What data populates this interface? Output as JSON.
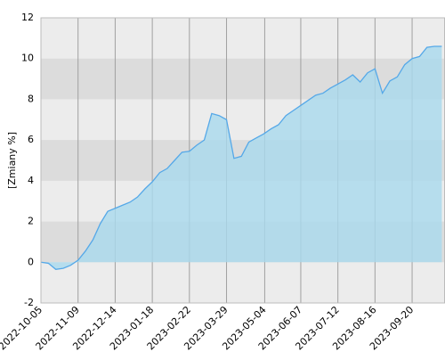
{
  "chart_data": {
    "type": "area",
    "y_label": "[Zmiany %]",
    "x": [
      "2022-10-05",
      "2022-10-12",
      "2022-10-19",
      "2022-10-26",
      "2022-11-02",
      "2022-11-09",
      "2022-11-16",
      "2022-11-23",
      "2022-11-30",
      "2022-12-07",
      "2022-12-14",
      "2022-12-21",
      "2022-12-28",
      "2023-01-04",
      "2023-01-11",
      "2023-01-18",
      "2023-01-25",
      "2023-02-01",
      "2023-02-08",
      "2023-02-15",
      "2023-02-22",
      "2023-03-01",
      "2023-03-08",
      "2023-03-15",
      "2023-03-22",
      "2023-03-29",
      "2023-04-05",
      "2023-04-12",
      "2023-04-19",
      "2023-04-26",
      "2023-05-03",
      "2023-05-10",
      "2023-05-17",
      "2023-05-24",
      "2023-05-31",
      "2023-06-07",
      "2023-06-14",
      "2023-06-21",
      "2023-06-28",
      "2023-07-05",
      "2023-07-12",
      "2023-07-19",
      "2023-07-26",
      "2023-08-02",
      "2023-08-09",
      "2023-08-16",
      "2023-08-23",
      "2023-08-30",
      "2023-09-06",
      "2023-09-13",
      "2023-09-20",
      "2023-09-27",
      "2023-10-04",
      "2023-10-11",
      "2023-10-18"
    ],
    "values": [
      0,
      -0.05,
      -0.35,
      -0.3,
      -0.15,
      0.1,
      0.55,
      1.1,
      1.9,
      2.5,
      2.65,
      2.8,
      2.95,
      3.2,
      3.6,
      3.95,
      4.4,
      4.6,
      5.0,
      5.4,
      5.45,
      5.75,
      6.0,
      7.3,
      7.2,
      7.0,
      5.1,
      5.2,
      5.9,
      6.1,
      6.3,
      6.55,
      6.75,
      7.2,
      7.45,
      7.7,
      7.95,
      8.2,
      8.3,
      8.55,
      8.75,
      8.95,
      9.2,
      8.85,
      9.3,
      9.5,
      8.3,
      8.9,
      9.1,
      9.7,
      10.0,
      10.1,
      10.55,
      10.6,
      10.6
    ],
    "color": "#55a8e8",
    "fill": "#a9d9ee",
    "xlim": [
      "2022-10-05",
      "2023-10-21"
    ],
    "xticks": [
      "2022-10-05",
      "2022-11-09",
      "2022-12-14",
      "2023-01-18",
      "2023-02-22",
      "2023-03-29",
      "2023-05-04",
      "2023-06-07",
      "2023-07-12",
      "2023-08-16",
      "2023-09-20"
    ],
    "ylim": [
      -2,
      12
    ],
    "yticks": [
      -2,
      0,
      2,
      4,
      6,
      8,
      10,
      12
    ],
    "grid": true
  }
}
